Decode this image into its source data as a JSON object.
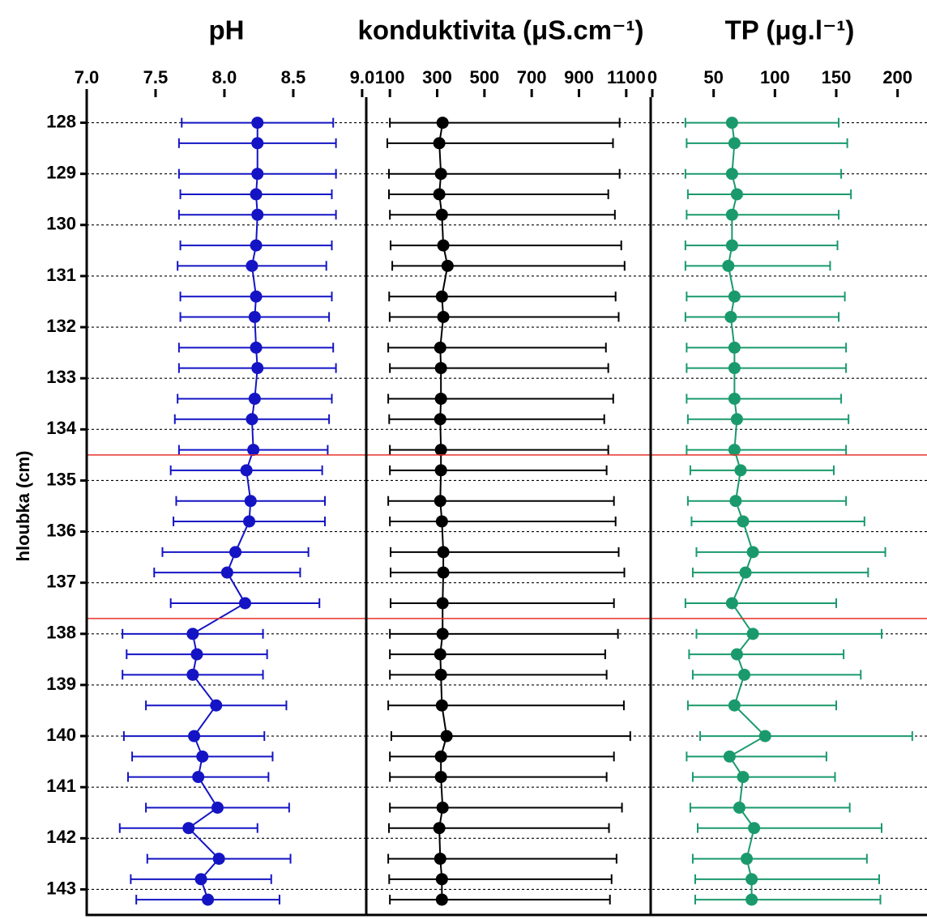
{
  "shared_y": {
    "label": "hloubka (cm)",
    "ylim": [
      127.5,
      143.5
    ],
    "yticks": [
      128,
      129,
      130,
      131,
      132,
      133,
      134,
      135,
      136,
      137,
      138,
      139,
      140,
      141,
      142,
      143
    ],
    "y": [
      128.0,
      128.4,
      129.0,
      129.4,
      129.8,
      130.4,
      130.8,
      131.4,
      131.8,
      132.4,
      132.8,
      133.4,
      133.8,
      134.4,
      134.8,
      135.4,
      135.8,
      136.4,
      136.8,
      137.4,
      138.0,
      138.4,
      138.8,
      139.4,
      140.0,
      140.4,
      140.8,
      141.4,
      141.8,
      142.4,
      142.8,
      143.2
    ]
  },
  "reference_lines": {
    "values": [
      134.5,
      137.7
    ],
    "color": "#e8322b"
  },
  "chart_data": [
    {
      "type": "errorbar_line",
      "title": "pH",
      "color": "#1414c4",
      "xlim": [
        7,
        9.03
      ],
      "xticks": [
        {
          "value": 7,
          "label": "7.0"
        },
        7.5,
        {
          "value": 8,
          "label": "8.0"
        },
        8.5,
        {
          "value": 9,
          "label": "9.0"
        }
      ],
      "values": [
        8.24,
        8.24,
        8.24,
        8.23,
        8.24,
        8.23,
        8.2,
        8.23,
        8.22,
        8.23,
        8.24,
        8.22,
        8.2,
        8.21,
        8.16,
        8.19,
        8.18,
        8.08,
        8.02,
        8.15,
        7.77,
        7.8,
        7.77,
        7.94,
        7.78,
        7.84,
        7.81,
        7.95,
        7.74,
        7.96,
        7.83,
        7.88
      ],
      "errors": [
        0.55,
        0.57,
        0.57,
        0.55,
        0.57,
        0.55,
        0.54,
        0.55,
        0.54,
        0.56,
        0.57,
        0.56,
        0.56,
        0.54,
        0.55,
        0.54,
        0.55,
        0.53,
        0.53,
        0.54,
        0.51,
        0.51,
        0.51,
        0.51,
        0.51,
        0.51,
        0.51,
        0.52,
        0.5,
        0.52,
        0.51,
        0.52
      ]
    },
    {
      "type": "errorbar_line",
      "title": "konduktivita (μS.cm⁻¹)",
      "color": "#000000",
      "xlim": [
        0,
        1200
      ],
      "xticks": [
        100,
        300,
        500,
        700,
        900,
        1100
      ],
      "values": [
        323,
        309,
        316,
        309,
        320,
        326,
        344,
        320,
        326,
        313,
        316,
        316,
        313,
        316,
        316,
        313,
        320,
        326,
        326,
        323,
        323,
        313,
        316,
        320,
        340,
        316,
        316,
        323,
        309,
        313,
        320,
        320
      ],
      "errors_minus": [
        223,
        220,
        220,
        213,
        220,
        223,
        234,
        223,
        227,
        220,
        216,
        223,
        216,
        216,
        216,
        220,
        220,
        223,
        223,
        220,
        223,
        213,
        216,
        227,
        234,
        216,
        216,
        223,
        213,
        220,
        223,
        220
      ],
      "errors_plus": [
        749,
        735,
        756,
        715,
        732,
        753,
        749,
        735,
        742,
        701,
        708,
        729,
        694,
        708,
        701,
        735,
        735,
        742,
        766,
        725,
        742,
        698,
        701,
        770,
        777,
        732,
        701,
        759,
        718,
        746,
        718,
        711
      ]
    },
    {
      "type": "errorbar_line",
      "title": "TP (μg.l⁻¹)",
      "color": "#1a9a6c",
      "xlim": [
        0,
        224
      ],
      "xticks": [
        0,
        50,
        100,
        150,
        200
      ],
      "values": [
        65,
        67,
        65,
        69,
        65,
        65,
        62,
        67,
        64,
        67,
        67,
        67,
        69,
        67,
        72,
        68,
        74,
        82,
        76,
        65,
        82,
        69,
        75,
        67,
        92,
        63,
        74,
        71,
        83,
        77,
        81,
        81
      ],
      "errors_minus": [
        38,
        39,
        38,
        40,
        37,
        38,
        35,
        39,
        37,
        39,
        39,
        39,
        40,
        39,
        41,
        39,
        42,
        46,
        43,
        38,
        46,
        39,
        42,
        38,
        53,
        35,
        41,
        40,
        46,
        44,
        46,
        46
      ],
      "errors_plus": [
        87,
        92,
        89,
        93,
        87,
        86,
        83,
        90,
        88,
        91,
        91,
        87,
        91,
        91,
        76,
        90,
        99,
        108,
        100,
        85,
        105,
        87,
        95,
        83,
        120,
        79,
        75,
        90,
        104,
        98,
        104,
        105
      ]
    }
  ]
}
